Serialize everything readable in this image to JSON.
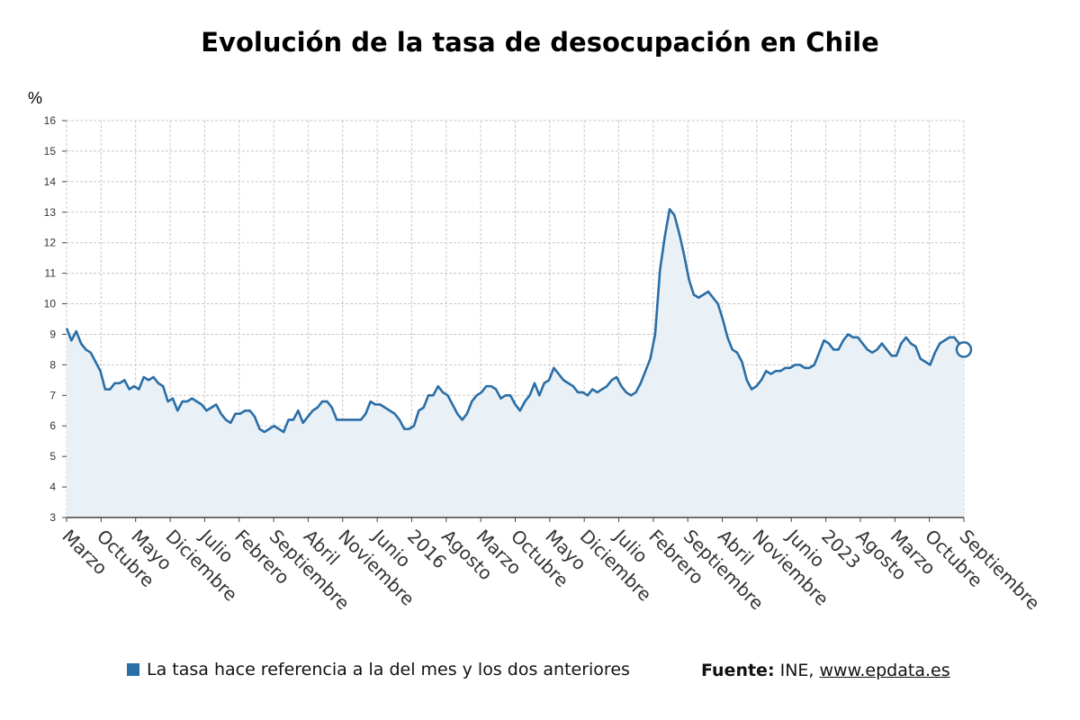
{
  "header": {
    "title": "Evolución de la tasa de desocupación en Chile"
  },
  "legend": {
    "text": "La tasa hace referencia a la del mes y los dos anteriores"
  },
  "source": {
    "label": "Fuente:",
    "org": "INE,",
    "url": "www.epdata.es"
  },
  "colors": {
    "line": "#2a6ea6",
    "area": "#e9f0f6",
    "grid": "#c8c8c8",
    "axis": "#444444"
  },
  "chart_data": {
    "type": "area",
    "title": "Evolución de la tasa de desocupación en Chile",
    "ylabel": "%",
    "ylim": [
      3,
      16
    ],
    "yticks": [
      3,
      4,
      5,
      6,
      7,
      8,
      9,
      10,
      11,
      12,
      13,
      14,
      15,
      16
    ],
    "grid": true,
    "x_tick_labels": [
      "Marzo",
      "Octubre",
      "Mayo",
      "Diciembre",
      "Julio",
      "Febrero",
      "Septiembre",
      "Abril",
      "Noviembre",
      "Junio",
      "2016",
      "Agosto",
      "Marzo",
      "Octubre",
      "Mayo",
      "Diciembre",
      "Julio",
      "Febrero",
      "Septiembre",
      "Abril",
      "Noviembre",
      "Junio",
      "2023",
      "Agosto",
      "Marzo",
      "Octubre",
      "Septiembre"
    ],
    "series": [
      {
        "values": [
          9.2,
          8.8,
          9.1,
          8.7,
          8.5,
          8.4,
          8.1,
          7.8,
          7.2,
          7.2,
          7.4,
          7.4,
          7.5,
          7.2,
          7.3,
          7.2,
          7.6,
          7.5,
          7.6,
          7.4,
          7.3,
          6.8,
          6.9,
          6.5,
          6.8,
          6.8,
          6.9,
          6.8,
          6.7,
          6.5,
          6.6,
          6.7,
          6.4,
          6.2,
          6.1,
          6.4,
          6.4,
          6.5,
          6.5,
          6.3,
          5.9,
          5.8,
          5.9,
          6.0,
          5.9,
          5.8,
          6.2,
          6.2,
          6.5,
          6.1,
          6.3,
          6.5,
          6.6,
          6.8,
          6.8,
          6.6,
          6.2,
          6.2,
          6.2,
          6.2,
          6.2,
          6.2,
          6.4,
          6.8,
          6.7,
          6.7,
          6.6,
          6.5,
          6.4,
          6.2,
          5.9,
          5.9,
          6.0,
          6.5,
          6.6,
          7.0,
          7.0,
          7.3,
          7.1,
          7.0,
          6.7,
          6.4,
          6.2,
          6.4,
          6.8,
          7.0,
          7.1,
          7.3,
          7.3,
          7.2,
          6.9,
          7.0,
          7.0,
          6.7,
          6.5,
          6.8,
          7.0,
          7.4,
          7.0,
          7.4,
          7.5,
          7.9,
          7.7,
          7.5,
          7.4,
          7.3,
          7.1,
          7.1,
          7.0,
          7.2,
          7.1,
          7.2,
          7.3,
          7.5,
          7.6,
          7.3,
          7.1,
          7.0,
          7.1,
          7.4,
          7.8,
          8.2,
          9.0,
          11.1,
          12.2,
          13.1,
          12.9,
          12.3,
          11.6,
          10.8,
          10.3,
          10.2,
          10.3,
          10.4,
          10.2,
          10.0,
          9.5,
          8.9,
          8.5,
          8.4,
          8.1,
          7.5,
          7.2,
          7.3,
          7.5,
          7.8,
          7.7,
          7.8,
          7.8,
          7.9,
          7.9,
          8.0,
          8.0,
          7.9,
          7.9,
          8.0,
          8.4,
          8.8,
          8.7,
          8.5,
          8.5,
          8.8,
          9.0,
          8.9,
          8.9,
          8.7,
          8.5,
          8.4,
          8.5,
          8.7,
          8.5,
          8.3,
          8.3,
          8.7,
          8.9,
          8.7,
          8.6,
          8.2,
          8.1,
          8.0,
          8.4,
          8.7,
          8.8,
          8.9,
          8.9,
          8.7,
          8.5
        ]
      }
    ]
  }
}
